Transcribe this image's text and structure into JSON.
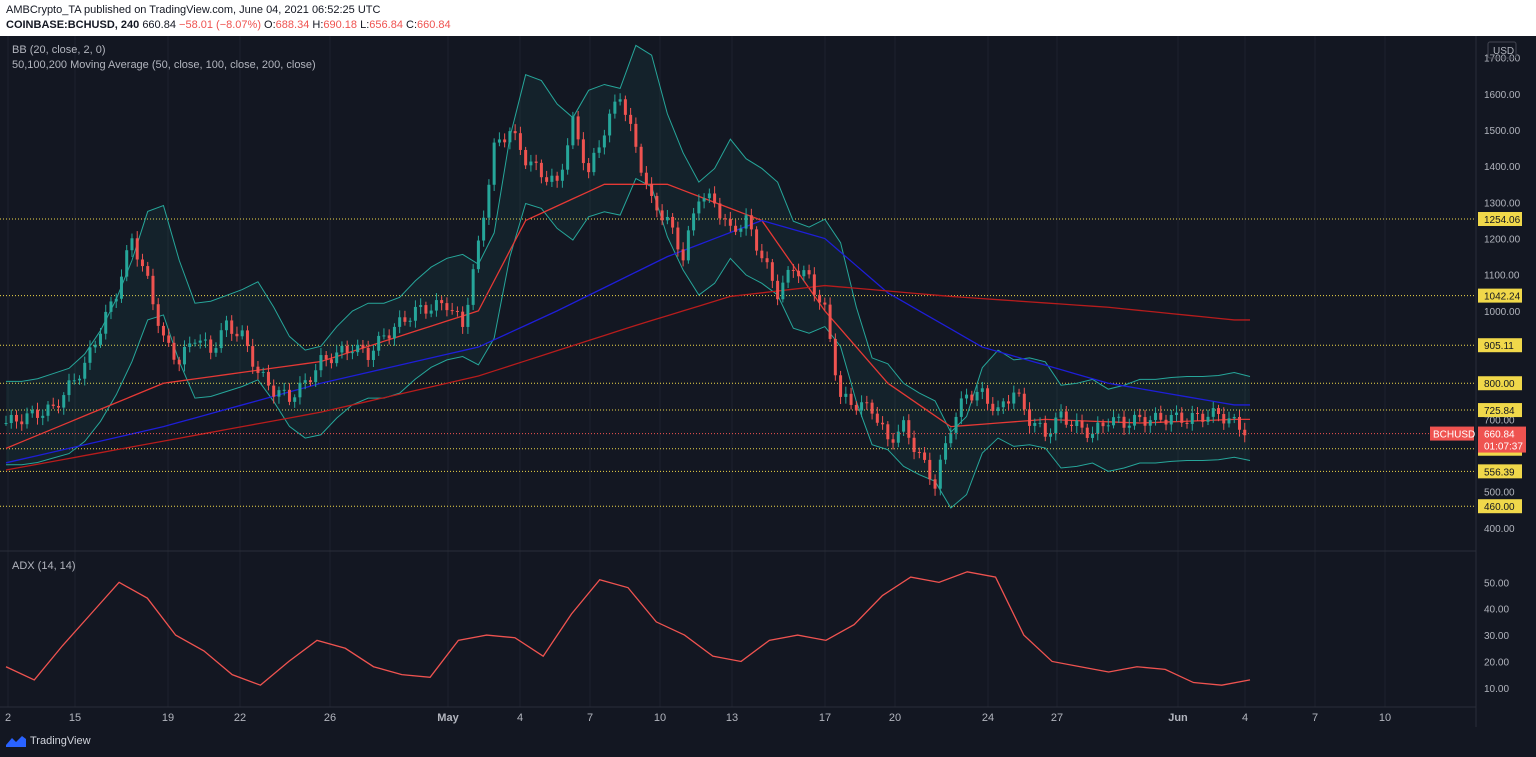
{
  "header": {
    "line1": "AMBCrypto_TA published on TradingView.com, June 04, 2021 06:52:25 UTC",
    "symbol": "COINBASE:BCHUSD, 240",
    "last": "660.84",
    "change": "−58.01 (−8.07%)",
    "o_label": "O:",
    "o": "688.34",
    "h_label": "H:",
    "h": "690.18",
    "l_label": "L:",
    "l": "656.84",
    "c_label": "C:",
    "c": "660.84"
  },
  "indicators": {
    "bb": "BB (20, close, 2, 0)",
    "ma": "50,100,200 Moving Average (50, close, 100, close, 200, close)",
    "adx": "ADX (14, 14)"
  },
  "footer": {
    "brand": "TradingView"
  },
  "colors": {
    "background": "#131722",
    "up": "#26a69a",
    "down": "#ef5350",
    "bb_band": "#26a69a",
    "ma50": "#e53935",
    "ma100": "#1e1ed8",
    "ma200": "#b71c1c",
    "level": "#f0d84a",
    "adx": "#ef5350"
  },
  "chart_data": [
    {
      "type": "candlestick",
      "currency": "USD",
      "x_tick_labels": [
        "2",
        "15",
        "19",
        "22",
        "26",
        "May",
        "4",
        "7",
        "10",
        "13",
        "17",
        "20",
        "24",
        "27",
        "Jun",
        "4",
        "7",
        "10"
      ],
      "y_tick_labels": [
        "1700.00",
        "1600.00",
        "1500.00",
        "1400.00",
        "1300.00",
        "1200.00",
        "1100.00",
        "1000.00",
        "700.00",
        "500.00",
        "400.00"
      ],
      "ylim": [
        350,
        1760
      ],
      "price_path": [
        [
          0,
          690
        ],
        [
          3,
          730
        ],
        [
          5,
          850
        ],
        [
          7,
          1050
        ],
        [
          8,
          1200
        ],
        [
          9,
          1080
        ],
        [
          10,
          920
        ],
        [
          11,
          860
        ],
        [
          12,
          930
        ],
        [
          13,
          890
        ],
        [
          14,
          960
        ],
        [
          15,
          930
        ],
        [
          16,
          830
        ],
        [
          17,
          780
        ],
        [
          18,
          760
        ],
        [
          19,
          800
        ],
        [
          20,
          860
        ],
        [
          22,
          900
        ],
        [
          23,
          880
        ],
        [
          24,
          930
        ],
        [
          26,
          1000
        ],
        [
          28,
          1020
        ],
        [
          29,
          960
        ],
        [
          30,
          1180
        ],
        [
          31,
          1450
        ],
        [
          32,
          1500
        ],
        [
          33,
          1420
        ],
        [
          34,
          1380
        ],
        [
          35,
          1350
        ],
        [
          36,
          1520
        ],
        [
          37,
          1380
        ],
        [
          38,
          1500
        ],
        [
          39,
          1600
        ],
        [
          40,
          1450
        ],
        [
          41,
          1300
        ],
        [
          42,
          1250
        ],
        [
          43,
          1150
        ],
        [
          44,
          1320
        ],
        [
          45,
          1300
        ],
        [
          46,
          1220
        ],
        [
          47,
          1250
        ],
        [
          48,
          1150
        ],
        [
          49,
          1050
        ],
        [
          50,
          1120
        ],
        [
          51,
          1090
        ],
        [
          52,
          1000
        ],
        [
          53,
          760
        ],
        [
          54,
          740
        ],
        [
          55,
          730
        ],
        [
          56,
          640
        ],
        [
          57,
          680
        ],
        [
          58,
          600
        ],
        [
          59,
          520
        ],
        [
          60,
          680
        ],
        [
          61,
          770
        ],
        [
          62,
          770
        ],
        [
          63,
          720
        ],
        [
          64,
          780
        ],
        [
          65,
          700
        ],
        [
          66,
          660
        ],
        [
          67,
          710
        ],
        [
          68,
          680
        ],
        [
          69,
          660
        ],
        [
          70,
          700
        ],
        [
          71,
          690
        ],
        [
          72,
          700
        ],
        [
          73,
          700
        ],
        [
          74,
          705
        ],
        [
          75,
          700
        ],
        [
          76,
          710
        ],
        [
          77,
          715
        ],
        [
          78,
          690
        ],
        [
          79,
          661
        ]
      ],
      "horizontal_levels": [
        {
          "value": 1254.06,
          "label": "1254.06"
        },
        {
          "value": 1042.24,
          "label": "1042.24"
        },
        {
          "value": 905.11,
          "label": "905.11"
        },
        {
          "value": 800.0,
          "label": "800.00"
        },
        {
          "value": 725.84,
          "label": "725.84"
        },
        {
          "value": 618.89,
          "label": "618.89"
        },
        {
          "value": 556.39,
          "label": "556.39"
        },
        {
          "value": 460.0,
          "label": "460.00"
        }
      ],
      "last_price": {
        "symbol": "BCHUSD",
        "value": "660.84",
        "countdown": "01:07:37"
      },
      "ma50": [
        [
          0,
          620
        ],
        [
          10,
          800
        ],
        [
          20,
          860
        ],
        [
          30,
          1000
        ],
        [
          33,
          1250
        ],
        [
          38,
          1350
        ],
        [
          42,
          1350
        ],
        [
          48,
          1250
        ],
        [
          52,
          1000
        ],
        [
          56,
          800
        ],
        [
          60,
          680
        ],
        [
          66,
          700
        ],
        [
          72,
          690
        ],
        [
          78,
          700
        ]
      ],
      "ma100": [
        [
          0,
          580
        ],
        [
          10,
          680
        ],
        [
          20,
          800
        ],
        [
          30,
          900
        ],
        [
          35,
          1000
        ],
        [
          42,
          1150
        ],
        [
          48,
          1250
        ],
        [
          52,
          1200
        ],
        [
          56,
          1050
        ],
        [
          62,
          900
        ],
        [
          70,
          800
        ],
        [
          78,
          740
        ]
      ],
      "ma200": [
        [
          0,
          560
        ],
        [
          10,
          640
        ],
        [
          20,
          720
        ],
        [
          30,
          820
        ],
        [
          40,
          960
        ],
        [
          46,
          1040
        ],
        [
          52,
          1070
        ],
        [
          60,
          1040
        ],
        [
          70,
          1010
        ],
        [
          78,
          975
        ]
      ]
    },
    {
      "type": "line",
      "title": "ADX (14, 14)",
      "y_tick_labels": [
        "50.00",
        "40.00",
        "30.00",
        "20.00",
        "10.00"
      ],
      "ylim": [
        5,
        60
      ],
      "values": [
        [
          0,
          18
        ],
        [
          1,
          13
        ],
        [
          2,
          26
        ],
        [
          3,
          38
        ],
        [
          4,
          50
        ],
        [
          5,
          44
        ],
        [
          6,
          30
        ],
        [
          7,
          24
        ],
        [
          8,
          15
        ],
        [
          9,
          11
        ],
        [
          10,
          20
        ],
        [
          11,
          28
        ],
        [
          12,
          25
        ],
        [
          13,
          18
        ],
        [
          14,
          15
        ],
        [
          15,
          14
        ],
        [
          16,
          28
        ],
        [
          17,
          30
        ],
        [
          18,
          29
        ],
        [
          19,
          22
        ],
        [
          20,
          38
        ],
        [
          21,
          51
        ],
        [
          22,
          48
        ],
        [
          23,
          35
        ],
        [
          24,
          30
        ],
        [
          25,
          22
        ],
        [
          26,
          20
        ],
        [
          27,
          28
        ],
        [
          28,
          30
        ],
        [
          29,
          28
        ],
        [
          30,
          34
        ],
        [
          31,
          45
        ],
        [
          32,
          52
        ],
        [
          33,
          50
        ],
        [
          34,
          54
        ],
        [
          35,
          52
        ],
        [
          36,
          30
        ],
        [
          37,
          20
        ],
        [
          38,
          18
        ],
        [
          39,
          16
        ],
        [
          40,
          18
        ],
        [
          41,
          17
        ],
        [
          42,
          12
        ],
        [
          43,
          11
        ],
        [
          44,
          13
        ]
      ]
    }
  ]
}
